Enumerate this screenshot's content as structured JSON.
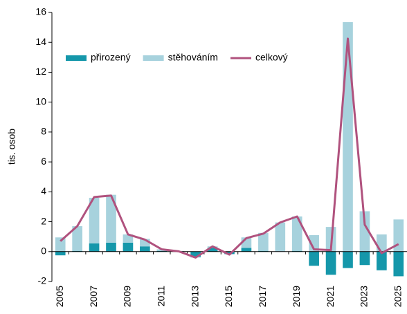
{
  "chart_data": {
    "type": "stacked_bar_line",
    "y_axis_label": "tis. osob",
    "categories": [
      "2005",
      null,
      "2007",
      null,
      "2009",
      null,
      "2011",
      null,
      "2013",
      null,
      "2015",
      null,
      "2017",
      null,
      "2019",
      null,
      "2021",
      null,
      "2023",
      null,
      "2025"
    ],
    "series": [
      {
        "name": "přirozený",
        "type": "bar",
        "color": "#1597aa",
        "values": [
          -0.25,
          0.05,
          0.55,
          0.6,
          0.6,
          0.35,
          0.05,
          0.0,
          -0.35,
          0.25,
          -0.15,
          0.25,
          0.05,
          0.0,
          0.05,
          -0.95,
          -1.55,
          -1.1,
          -0.9,
          -1.25,
          -1.65
        ]
      },
      {
        "name": "stěhováním",
        "type": "bar",
        "color": "#a7d2dd",
        "values": [
          0.95,
          1.65,
          3.05,
          3.2,
          0.55,
          0.5,
          0.1,
          0.05,
          -0.05,
          0.1,
          -0.05,
          0.7,
          1.2,
          1.95,
          2.3,
          1.1,
          1.65,
          15.35,
          2.7,
          1.15,
          2.15
        ]
      },
      {
        "name": "celkový",
        "type": "line",
        "color": "#b0527e",
        "values": [
          0.7,
          1.7,
          3.65,
          3.75,
          1.15,
          0.8,
          0.15,
          0.02,
          -0.4,
          0.35,
          -0.2,
          0.9,
          1.2,
          1.95,
          2.35,
          0.15,
          0.1,
          14.25,
          1.8,
          -0.1,
          0.5
        ]
      }
    ],
    "ylim": [
      -2,
      16
    ],
    "yticks": [
      -2,
      0,
      2,
      4,
      6,
      8,
      10,
      12,
      14,
      16
    ]
  }
}
